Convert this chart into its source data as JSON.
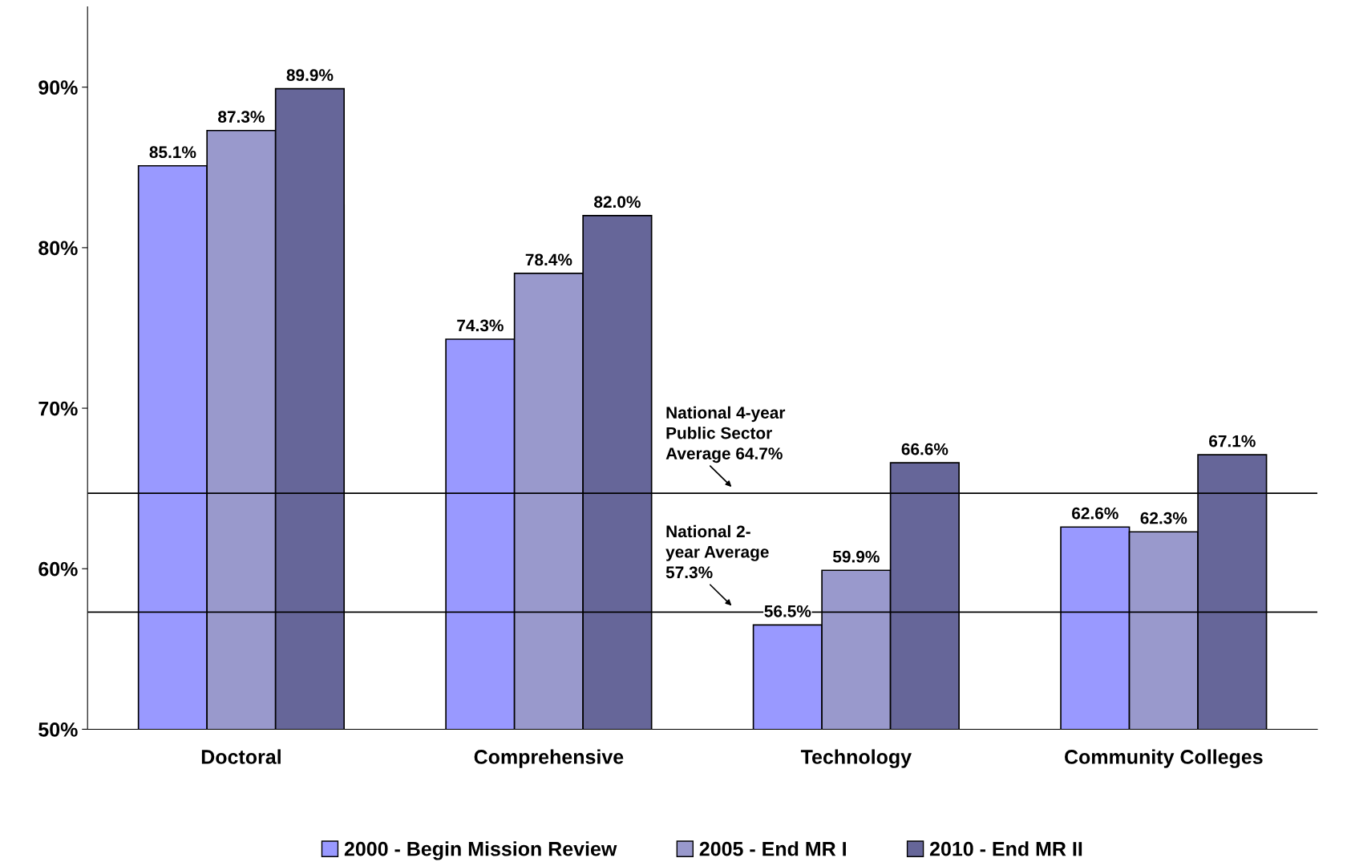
{
  "chart_data": {
    "type": "bar",
    "categories": [
      "Doctoral",
      "Comprehensive",
      "Technology",
      "Community Colleges"
    ],
    "series": [
      {
        "name": "2000 - Begin Mission Review",
        "color": "#9999ff",
        "values": [
          85.1,
          74.3,
          56.5,
          62.6
        ],
        "value_labels": [
          "85.1%",
          "74.3%",
          "56.5%",
          "62.6%"
        ]
      },
      {
        "name": "2005 - End MR I",
        "color": "#9999cc",
        "values": [
          87.3,
          78.4,
          59.9,
          62.3
        ],
        "value_labels": [
          "87.3%",
          "78.4%",
          "59.9%",
          "62.3%"
        ]
      },
      {
        "name": "2010 - End MR II",
        "color": "#666699",
        "values": [
          89.9,
          82.0,
          66.6,
          67.1
        ],
        "value_labels": [
          "89.9%",
          "82.0%",
          "66.6%",
          "67.1%"
        ]
      }
    ],
    "ylim": [
      50,
      95
    ],
    "yticks": [
      {
        "value": 50,
        "label": "50%"
      },
      {
        "value": 60,
        "label": "60%"
      },
      {
        "value": 70,
        "label": "70%"
      },
      {
        "value": 80,
        "label": "80%"
      },
      {
        "value": 90,
        "label": "90%"
      }
    ],
    "ref_lines": [
      {
        "axis": "y",
        "value": 64.7,
        "label": "National 4-year\nPublic Sector\nAverage 64.7%",
        "color": "#000000"
      },
      {
        "axis": "y",
        "value": 57.3,
        "label": "National 2-\nyear Average\n57.3%",
        "color": "#000000"
      }
    ],
    "grid": false,
    "legend": "bottom"
  }
}
